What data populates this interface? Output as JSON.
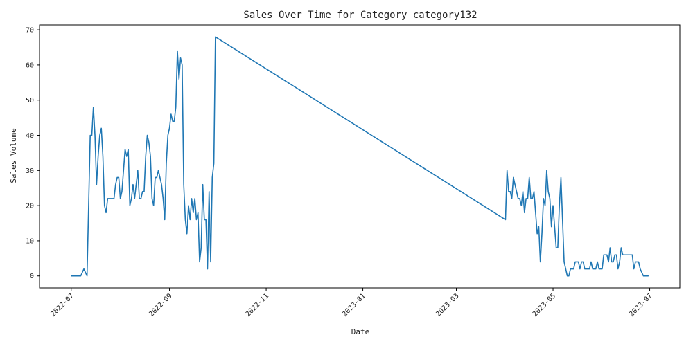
{
  "chart_data": {
    "type": "line",
    "title": "Sales Over Time for Category category132",
    "xlabel": "Date",
    "ylabel": "Sales Volume",
    "x_ticks": [
      "2022-07-01",
      "2022-09-01",
      "2022-11-01",
      "2023-01-01",
      "2023-03-01",
      "2023-05-01",
      "2023-07-01"
    ],
    "x_tick_labels": [
      "2022-07",
      "2022-09",
      "2022-11",
      "2023-01",
      "2023-03",
      "2023-05",
      "2023-07"
    ],
    "y_ticks": [
      0,
      10,
      20,
      30,
      40,
      50,
      60,
      70
    ],
    "xlim": [
      "2022-06-11",
      "2023-07-20"
    ],
    "ylim": [
      -3.4,
      71.4
    ],
    "grid": false,
    "legend": "none",
    "line_color": "#1f77b4",
    "series": [
      {
        "x": [
          "2022-07-01",
          "2022-07-02",
          "2022-07-03",
          "2022-07-04",
          "2022-07-05",
          "2022-07-06",
          "2022-07-07",
          "2022-07-08",
          "2022-07-09",
          "2022-07-10",
          "2022-07-11",
          "2022-07-12",
          "2022-07-13",
          "2022-07-14",
          "2022-07-15",
          "2022-07-16",
          "2022-07-17",
          "2022-07-18",
          "2022-07-19",
          "2022-07-20",
          "2022-07-21",
          "2022-07-22",
          "2022-07-23",
          "2022-07-24",
          "2022-07-25",
          "2022-07-26",
          "2022-07-27",
          "2022-07-28",
          "2022-07-29",
          "2022-07-30",
          "2022-07-31",
          "2022-08-01",
          "2022-08-02",
          "2022-08-03",
          "2022-08-04",
          "2022-08-05",
          "2022-08-06",
          "2022-08-07",
          "2022-08-08",
          "2022-08-09",
          "2022-08-10",
          "2022-08-11",
          "2022-08-12",
          "2022-08-13",
          "2022-08-14",
          "2022-08-15",
          "2022-08-16",
          "2022-08-17",
          "2022-08-18",
          "2022-08-19",
          "2022-08-20",
          "2022-08-21",
          "2022-08-22",
          "2022-08-23",
          "2022-08-24",
          "2022-08-25",
          "2022-08-26",
          "2022-08-27",
          "2022-08-28",
          "2022-08-29",
          "2022-08-30",
          "2022-08-31",
          "2022-09-01",
          "2022-09-02",
          "2022-09-03",
          "2022-09-04",
          "2022-09-05",
          "2022-09-06",
          "2022-09-07",
          "2022-09-08",
          "2022-09-09",
          "2022-09-10",
          "2022-09-11",
          "2022-09-12",
          "2022-09-13",
          "2022-09-14",
          "2022-09-15",
          "2022-09-16",
          "2022-09-17",
          "2022-09-18",
          "2022-09-19",
          "2022-09-20",
          "2022-09-21",
          "2022-09-22",
          "2022-09-23",
          "2022-09-24",
          "2022-09-25",
          "2022-09-26",
          "2022-09-27",
          "2022-09-28",
          "2022-09-29",
          "2022-09-30",
          "2023-04-01",
          "2023-04-02",
          "2023-04-03",
          "2023-04-04",
          "2023-04-05",
          "2023-04-06",
          "2023-04-07",
          "2023-04-08",
          "2023-04-09",
          "2023-04-10",
          "2023-04-11",
          "2023-04-12",
          "2023-04-13",
          "2023-04-14",
          "2023-04-15",
          "2023-04-16",
          "2023-04-17",
          "2023-04-18",
          "2023-04-19",
          "2023-04-20",
          "2023-04-21",
          "2023-04-22",
          "2023-04-23",
          "2023-04-24",
          "2023-04-25",
          "2023-04-26",
          "2023-04-27",
          "2023-04-28",
          "2023-04-29",
          "2023-04-30",
          "2023-05-01",
          "2023-05-02",
          "2023-05-03",
          "2023-05-04",
          "2023-05-05",
          "2023-05-06",
          "2023-05-07",
          "2023-05-08",
          "2023-05-09",
          "2023-05-10",
          "2023-05-11",
          "2023-05-12",
          "2023-05-13",
          "2023-05-14",
          "2023-05-15",
          "2023-05-16",
          "2023-05-17",
          "2023-05-18",
          "2023-05-19",
          "2023-05-20",
          "2023-05-21",
          "2023-05-22",
          "2023-05-23",
          "2023-05-24",
          "2023-05-25",
          "2023-05-26",
          "2023-05-27",
          "2023-05-28",
          "2023-05-29",
          "2023-05-30",
          "2023-05-31",
          "2023-06-01",
          "2023-06-02",
          "2023-06-03",
          "2023-06-04",
          "2023-06-05",
          "2023-06-06",
          "2023-06-07",
          "2023-06-08",
          "2023-06-09",
          "2023-06-10",
          "2023-06-11",
          "2023-06-12",
          "2023-06-13",
          "2023-06-14",
          "2023-06-15",
          "2023-06-16",
          "2023-06-17",
          "2023-06-18",
          "2023-06-19",
          "2023-06-20",
          "2023-06-21",
          "2023-06-22",
          "2023-06-23",
          "2023-06-24",
          "2023-06-25",
          "2023-06-26",
          "2023-06-27",
          "2023-06-28",
          "2023-06-29",
          "2023-06-30"
        ],
        "values": [
          0,
          0,
          0,
          0,
          0,
          0,
          0,
          1,
          2,
          1,
          0,
          20,
          40,
          40,
          48,
          40,
          26,
          34,
          40,
          42,
          34,
          20,
          18,
          22,
          22,
          22,
          22,
          22,
          26,
          28,
          28,
          22,
          24,
          30,
          36,
          34,
          36,
          20,
          22,
          26,
          22,
          26,
          30,
          22,
          22,
          24,
          24,
          34,
          40,
          38,
          34,
          22,
          20,
          28,
          28,
          30,
          28,
          26,
          22,
          16,
          32,
          40,
          42,
          46,
          44,
          44,
          48,
          64,
          56,
          62,
          60,
          26,
          16,
          12,
          20,
          16,
          22,
          18,
          22,
          16,
          18,
          4,
          8,
          26,
          16,
          16,
          2,
          24,
          4,
          28,
          32,
          68,
          16,
          30,
          24,
          24,
          22,
          28,
          26,
          24,
          22,
          22,
          20,
          24,
          18,
          22,
          22,
          28,
          22,
          22,
          24,
          18,
          12,
          14,
          4,
          12,
          22,
          20,
          30,
          24,
          22,
          14,
          20,
          14,
          8,
          8,
          20,
          28,
          16,
          4,
          2,
          0,
          0,
          2,
          2,
          2,
          4,
          4,
          4,
          2,
          4,
          4,
          2,
          2,
          2,
          2,
          4,
          2,
          2,
          2,
          4,
          2,
          2,
          2,
          6,
          6,
          6,
          4,
          8,
          4,
          4,
          6,
          6,
          2,
          4,
          8,
          6,
          6,
          6,
          6,
          6,
          6,
          6,
          2,
          4,
          4,
          4,
          2,
          1,
          0,
          0,
          0,
          0
        ]
      }
    ]
  }
}
